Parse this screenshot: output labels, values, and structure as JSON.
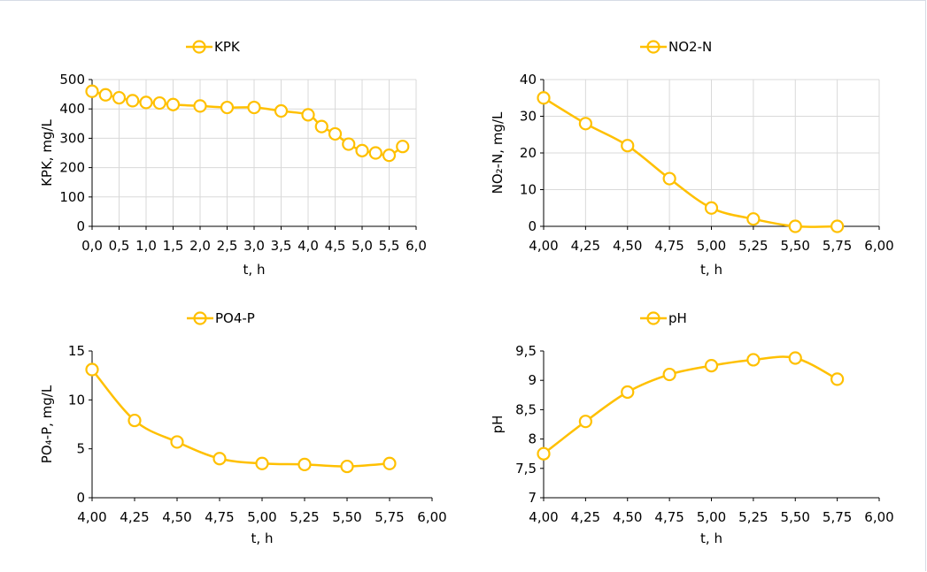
{
  "charts_style": {
    "series_color": "#FFC000"
  },
  "chart_data": [
    {
      "type": "line",
      "legend": "KPK",
      "legend_position": "top",
      "xlabel": "t, h",
      "ylabel": "KPK, mg/L",
      "xlim": [
        0,
        6
      ],
      "ylim": [
        0,
        500
      ],
      "x_ticks": [
        "0,0",
        "0,5",
        "1,0",
        "1,5",
        "2,0",
        "2,5",
        "3,0",
        "3,5",
        "4,0",
        "4,5",
        "5,0",
        "5,5",
        "6,0"
      ],
      "y_ticks": [
        "0",
        "100",
        "200",
        "300",
        "400",
        "500"
      ],
      "grid": true,
      "series": [
        {
          "name": "KPK",
          "x": [
            0,
            0.25,
            0.5,
            0.75,
            1.0,
            1.25,
            1.5,
            2.0,
            2.5,
            3.0,
            3.5,
            4.0,
            4.25,
            4.5,
            4.75,
            5.0,
            5.25,
            5.5,
            5.75
          ],
          "values": [
            460,
            448,
            438,
            428,
            422,
            420,
            415,
            410,
            405,
            405,
            393,
            380,
            340,
            315,
            280,
            258,
            250,
            242,
            272
          ]
        }
      ]
    },
    {
      "type": "line",
      "legend": "NO2-N",
      "legend_position": "top",
      "xlabel": "t, h",
      "ylabel": "NO₂-N, mg/L",
      "xlim": [
        4,
        6
      ],
      "ylim": [
        0,
        40
      ],
      "x_ticks": [
        "4,00",
        "4,25",
        "4,50",
        "4,75",
        "5,00",
        "5,25",
        "5,50",
        "5,75",
        "6,00"
      ],
      "y_ticks": [
        "0",
        "10",
        "20",
        "30",
        "40"
      ],
      "grid": true,
      "series": [
        {
          "name": "NO2-N",
          "x": [
            4.0,
            4.25,
            4.5,
            4.75,
            5.0,
            5.25,
            5.5,
            5.75
          ],
          "values": [
            35,
            28,
            22,
            13,
            5,
            2,
            0,
            0
          ]
        }
      ]
    },
    {
      "type": "line",
      "legend": "PO4-P",
      "legend_position": "top",
      "xlabel": "t, h",
      "ylabel": "PO₄-P, mg/L",
      "xlim": [
        4,
        6
      ],
      "ylim": [
        0,
        15
      ],
      "x_ticks": [
        "4,00",
        "4,25",
        "4,50",
        "4,75",
        "5,00",
        "5,25",
        "5,50",
        "5,75",
        "6,00"
      ],
      "y_ticks": [
        "0",
        "5",
        "10",
        "15"
      ],
      "grid": false,
      "series": [
        {
          "name": "PO4-P",
          "x": [
            4.0,
            4.25,
            4.5,
            4.75,
            5.0,
            5.25,
            5.5,
            5.75
          ],
          "values": [
            13.1,
            7.9,
            5.7,
            4.0,
            3.5,
            3.4,
            3.2,
            3.5
          ]
        }
      ]
    },
    {
      "type": "line",
      "legend": "pH",
      "legend_position": "top",
      "xlabel": "t, h",
      "ylabel": "pH",
      "xlim": [
        4,
        6
      ],
      "ylim": [
        7,
        9.5
      ],
      "x_ticks": [
        "4,00",
        "4,25",
        "4,50",
        "4,75",
        "5,00",
        "5,25",
        "5,50",
        "5,75",
        "6,00"
      ],
      "y_ticks": [
        "7",
        "7,5",
        "8",
        "8,5",
        "9",
        "9,5"
      ],
      "grid": false,
      "series": [
        {
          "name": "pH",
          "x": [
            4.0,
            4.25,
            4.5,
            4.75,
            5.0,
            5.25,
            5.5,
            5.75
          ],
          "values": [
            7.75,
            8.3,
            8.8,
            9.1,
            9.25,
            9.35,
            9.38,
            9.02
          ]
        }
      ]
    }
  ]
}
